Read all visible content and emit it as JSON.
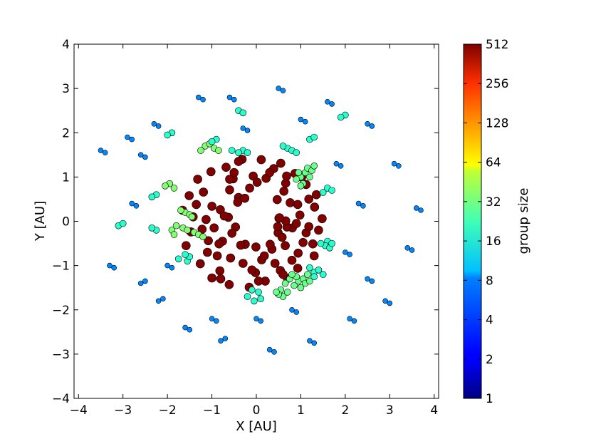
{
  "chart_data": {
    "type": "scatter",
    "title": "",
    "xlabel": "X [AU]",
    "ylabel": "Y [AU]",
    "xlim": [
      -4.1,
      4.1
    ],
    "ylim": [
      -4,
      4
    ],
    "x_ticks": [
      -4,
      -3,
      -2,
      -1,
      0,
      1,
      2,
      3,
      4
    ],
    "y_ticks": [
      -4,
      -3,
      -2,
      -1,
      0,
      1,
      2,
      3,
      4
    ],
    "x_tick_labels": [
      "−4",
      "−3",
      "−2",
      "−1",
      "0",
      "1",
      "2",
      "3",
      "4"
    ],
    "y_tick_labels": [
      "−4",
      "−3",
      "−2",
      "−1",
      "0",
      "1",
      "2",
      "3",
      "4"
    ],
    "grid": false,
    "colorbar": {
      "label": "group size",
      "scale": "log2",
      "range": [
        1,
        512
      ],
      "ticks": [
        1,
        2,
        4,
        8,
        16,
        32,
        64,
        128,
        256,
        512
      ],
      "tick_labels": [
        "1",
        "2",
        "4",
        "8",
        "16",
        "32",
        "64",
        "128",
        "256",
        "512"
      ],
      "colormap": "jet"
    },
    "series": [
      {
        "group_size": 512,
        "points": [
          [
            0.47,
            0.49
          ],
          [
            0.81,
            -0.15
          ],
          [
            0.49,
            -0.26
          ],
          [
            0.35,
            -0.63
          ],
          [
            0.69,
            -0.13
          ],
          [
            0.51,
            0.07
          ],
          [
            0.48,
            -0.12
          ],
          [
            0.39,
            1.19
          ],
          [
            0.58,
            -0.36
          ],
          [
            0.66,
            0.01
          ],
          [
            0.12,
            -0.87
          ],
          [
            -0.01,
            -0.58
          ],
          [
            -0.25,
            -0.52
          ],
          [
            -0.76,
            -0.45
          ],
          [
            -0.35,
            -0.54
          ],
          [
            -0.47,
            -0.13
          ],
          [
            -0.58,
            -0.83
          ],
          [
            -0.81,
            0.26
          ],
          [
            -0.84,
            -0.51
          ],
          [
            -0.63,
            0.09
          ],
          [
            -0.4,
            0.54
          ],
          [
            -0.52,
            0.96
          ],
          [
            -0.26,
            0.52
          ],
          [
            -0.07,
            1.02
          ],
          [
            0.22,
            0.97
          ],
          [
            0.66,
            0.86
          ],
          [
            0.93,
            0.38
          ],
          [
            1.12,
            -0.26
          ],
          [
            0.94,
            -0.72
          ],
          [
            0.54,
            -1.11
          ],
          [
            -0.02,
            -1.16
          ],
          [
            -0.82,
            -1.12
          ],
          [
            -1.08,
            -0.44
          ],
          [
            -1.13,
            0.04
          ],
          [
            -1.19,
            0.66
          ],
          [
            -0.68,
            1.22
          ],
          [
            0.11,
            1.39
          ],
          [
            0.87,
            1.08
          ],
          [
            1.31,
            0.32
          ],
          [
            1.27,
            -0.51
          ],
          [
            0.93,
            -1.06
          ],
          [
            0.2,
            -1.35
          ],
          [
            -0.61,
            -1.43
          ],
          [
            -1.26,
            -0.96
          ],
          [
            -1.47,
            -0.24
          ],
          [
            -1.51,
            0.58
          ],
          [
            -1.02,
            1.12
          ],
          [
            -0.32,
            1.4
          ],
          [
            0.55,
            1.31
          ],
          [
            1.12,
            0.83
          ],
          [
            1.48,
            0.06
          ],
          [
            1.3,
            -0.78
          ],
          [
            0.7,
            -1.29
          ],
          [
            -0.16,
            -1.49
          ],
          [
            -1.0,
            -1.28
          ],
          [
            -1.58,
            -0.55
          ],
          [
            -1.66,
            0.25
          ],
          [
            -1.32,
            0.95
          ],
          [
            0.52,
            0.08
          ],
          [
            -0.42,
            0.43
          ],
          [
            0.31,
            -0.52
          ],
          [
            -0.55,
            -0.27
          ],
          [
            0.76,
            0.42
          ],
          [
            0.65,
            -0.55
          ],
          [
            -0.15,
            0.75
          ],
          [
            -0.72,
            0.12
          ],
          [
            0.9,
            -0.05
          ],
          [
            -0.88,
            -0.78
          ],
          [
            0.18,
            -0.78
          ],
          [
            0.62,
            0.68
          ],
          [
            -0.6,
            0.71
          ],
          [
            0.98,
            0.14
          ],
          [
            -1.0,
            0.34
          ],
          [
            1.05,
            -0.48
          ],
          [
            -0.3,
            -0.95
          ],
          [
            0.42,
            -0.95
          ],
          [
            0.02,
            0.88
          ],
          [
            -0.95,
            -0.15
          ],
          [
            0.8,
            -0.88
          ],
          [
            -0.5,
            1.1
          ],
          [
            0.3,
            1.1
          ],
          [
            1.18,
            0.5
          ],
          [
            -1.22,
            -0.18
          ],
          [
            1.18,
            -0.12
          ],
          [
            -0.1,
            -1.1
          ],
          [
            0.68,
            1.02
          ],
          [
            -1.35,
            0.38
          ],
          [
            1.4,
            -0.2
          ],
          [
            -0.8,
            -1.3
          ],
          [
            1.02,
            1.0
          ],
          [
            -1.1,
            -0.7
          ],
          [
            0.05,
            -1.35
          ],
          [
            -0.4,
            1.35
          ],
          [
            1.35,
            0.6
          ],
          [
            0.6,
            -1.2
          ],
          [
            -1.42,
            0.1
          ],
          [
            -0.6,
            0.95
          ]
        ]
      },
      {
        "group_size": 20,
        "points": [
          [
            0.65,
            -1.4
          ],
          [
            0.75,
            -1.3
          ],
          [
            0.85,
            -1.45
          ],
          [
            0.95,
            -1.35
          ],
          [
            0.55,
            -1.55
          ],
          [
            0.7,
            -1.6
          ],
          [
            1.05,
            -1.3
          ],
          [
            1.15,
            -1.2
          ],
          [
            0.9,
            -1.25
          ],
          [
            0.6,
            -1.7
          ],
          [
            0.5,
            -1.65
          ],
          [
            1.0,
            -1.5
          ],
          [
            0.8,
            -1.2
          ],
          [
            1.1,
            -1.4
          ],
          [
            0.45,
            -1.6
          ],
          [
            1.2,
            -1.35
          ],
          [
            1.0,
            1.0
          ],
          [
            1.1,
            1.1
          ],
          [
            1.2,
            1.0
          ],
          [
            1.05,
            0.85
          ],
          [
            1.15,
            1.2
          ],
          [
            0.95,
            1.1
          ],
          [
            1.25,
            1.15
          ],
          [
            0.9,
            0.95
          ],
          [
            1.0,
            0.8
          ],
          [
            1.3,
            1.25
          ]
        ]
      },
      {
        "group_size": 24,
        "points": [
          [
            -1.6,
            0.2
          ],
          [
            -1.5,
            0.15
          ],
          [
            -1.45,
            0.1
          ],
          [
            -1.7,
            0.25
          ],
          [
            -1.8,
            -0.1
          ],
          [
            -1.65,
            -0.15
          ],
          [
            -1.55,
            -0.2
          ],
          [
            -1.4,
            -0.25
          ],
          [
            -1.3,
            -0.3
          ],
          [
            -1.2,
            -0.35
          ],
          [
            -1.9,
            -0.2
          ],
          [
            -1.85,
            -0.3
          ],
          [
            -1.95,
            0.85
          ],
          [
            -2.05,
            0.8
          ],
          [
            -1.85,
            0.75
          ],
          [
            -1.15,
            1.7
          ],
          [
            -1.05,
            1.75
          ],
          [
            -0.95,
            1.65
          ],
          [
            -1.25,
            1.6
          ],
          [
            -0.85,
            1.6
          ]
        ]
      },
      {
        "group_size": 12,
        "points": [
          [
            -0.3,
            1.6
          ],
          [
            -0.2,
            1.55
          ],
          [
            -0.4,
            1.55
          ],
          [
            -0.55,
            1.6
          ],
          [
            -0.9,
            1.85
          ],
          [
            -1.0,
            1.8
          ],
          [
            0.7,
            1.65
          ],
          [
            0.8,
            1.6
          ],
          [
            0.9,
            1.55
          ],
          [
            0.6,
            1.7
          ],
          [
            1.3,
            -1.15
          ],
          [
            1.4,
            -1.1
          ],
          [
            1.5,
            -1.2
          ],
          [
            1.3,
            -1.25
          ],
          [
            1.2,
            -1.05
          ],
          [
            1.6,
            -0.45
          ],
          [
            1.55,
            -0.55
          ],
          [
            1.65,
            -0.6
          ],
          [
            1.7,
            -0.5
          ],
          [
            1.45,
            -0.5
          ],
          [
            1.6,
            0.75
          ],
          [
            1.7,
            0.7
          ],
          [
            1.5,
            0.65
          ],
          [
            1.2,
            1.85
          ],
          [
            1.3,
            1.9
          ],
          [
            -1.55,
            -0.9
          ],
          [
            -1.5,
            -0.8
          ],
          [
            -1.6,
            -0.75
          ],
          [
            -1.75,
            -0.85
          ],
          [
            -0.1,
            -1.55
          ],
          [
            0.05,
            -1.6
          ],
          [
            -0.2,
            -1.7
          ],
          [
            0.1,
            -1.75
          ],
          [
            -0.05,
            -1.8
          ],
          [
            -2.25,
            0.6
          ],
          [
            -2.35,
            0.55
          ],
          [
            -2.25,
            -0.2
          ],
          [
            -2.35,
            -0.15
          ],
          [
            -3.1,
            -0.1
          ],
          [
            -3.0,
            -0.05
          ],
          [
            -0.4,
            2.5
          ],
          [
            -0.3,
            2.45
          ],
          [
            2.0,
            2.4
          ],
          [
            1.9,
            2.35
          ],
          [
            -1.9,
            2.0
          ],
          [
            -2.0,
            1.95
          ]
        ]
      },
      {
        "group_size": 5,
        "points": [
          [
            -3.5,
            1.6
          ],
          [
            -3.4,
            1.55
          ],
          [
            -2.6,
            1.5
          ],
          [
            -2.5,
            1.45
          ],
          [
            -3.3,
            -1.0
          ],
          [
            -3.2,
            -1.05
          ],
          [
            -2.6,
            -1.4
          ],
          [
            -2.5,
            -1.35
          ],
          [
            -2.2,
            -1.8
          ],
          [
            -2.1,
            -1.75
          ],
          [
            -1.6,
            -2.4
          ],
          [
            -1.5,
            -2.45
          ],
          [
            -0.8,
            -2.7
          ],
          [
            -0.7,
            -2.65
          ],
          [
            0.3,
            -2.9
          ],
          [
            0.4,
            -2.95
          ],
          [
            1.2,
            -2.7
          ],
          [
            1.3,
            -2.75
          ],
          [
            2.1,
            -2.2
          ],
          [
            2.2,
            -2.25
          ],
          [
            2.9,
            -1.8
          ],
          [
            3.0,
            -1.85
          ],
          [
            3.4,
            -0.6
          ],
          [
            3.5,
            -0.65
          ],
          [
            3.6,
            0.3
          ],
          [
            3.7,
            0.25
          ],
          [
            3.1,
            1.3
          ],
          [
            3.2,
            1.25
          ],
          [
            2.5,
            2.2
          ],
          [
            2.6,
            2.15
          ],
          [
            1.6,
            2.7
          ],
          [
            1.7,
            2.65
          ],
          [
            0.5,
            3.0
          ],
          [
            0.6,
            2.95
          ],
          [
            -0.6,
            2.8
          ],
          [
            -0.5,
            2.75
          ],
          [
            -1.3,
            2.8
          ],
          [
            -1.2,
            2.75
          ],
          [
            -2.3,
            2.2
          ],
          [
            -2.2,
            2.15
          ],
          [
            -2.9,
            1.9
          ],
          [
            -2.8,
            1.85
          ],
          [
            0.0,
            -2.2
          ],
          [
            0.1,
            -2.25
          ],
          [
            -1.0,
            -2.2
          ],
          [
            -0.9,
            -2.25
          ],
          [
            2.5,
            -1.3
          ],
          [
            2.6,
            -1.35
          ],
          [
            2.3,
            0.4
          ],
          [
            2.4,
            0.35
          ],
          [
            1.0,
            2.3
          ],
          [
            1.1,
            2.25
          ],
          [
            -2.0,
            -1.0
          ],
          [
            -1.9,
            -1.05
          ],
          [
            0.8,
            -2.0
          ],
          [
            0.9,
            -2.05
          ],
          [
            -2.8,
            0.4
          ],
          [
            -2.7,
            0.35
          ],
          [
            2.0,
            -0.7
          ],
          [
            2.1,
            -0.75
          ],
          [
            -0.3,
            2.1
          ],
          [
            -0.2,
            2.05
          ],
          [
            1.8,
            1.3
          ],
          [
            1.9,
            1.25
          ]
        ]
      }
    ]
  }
}
